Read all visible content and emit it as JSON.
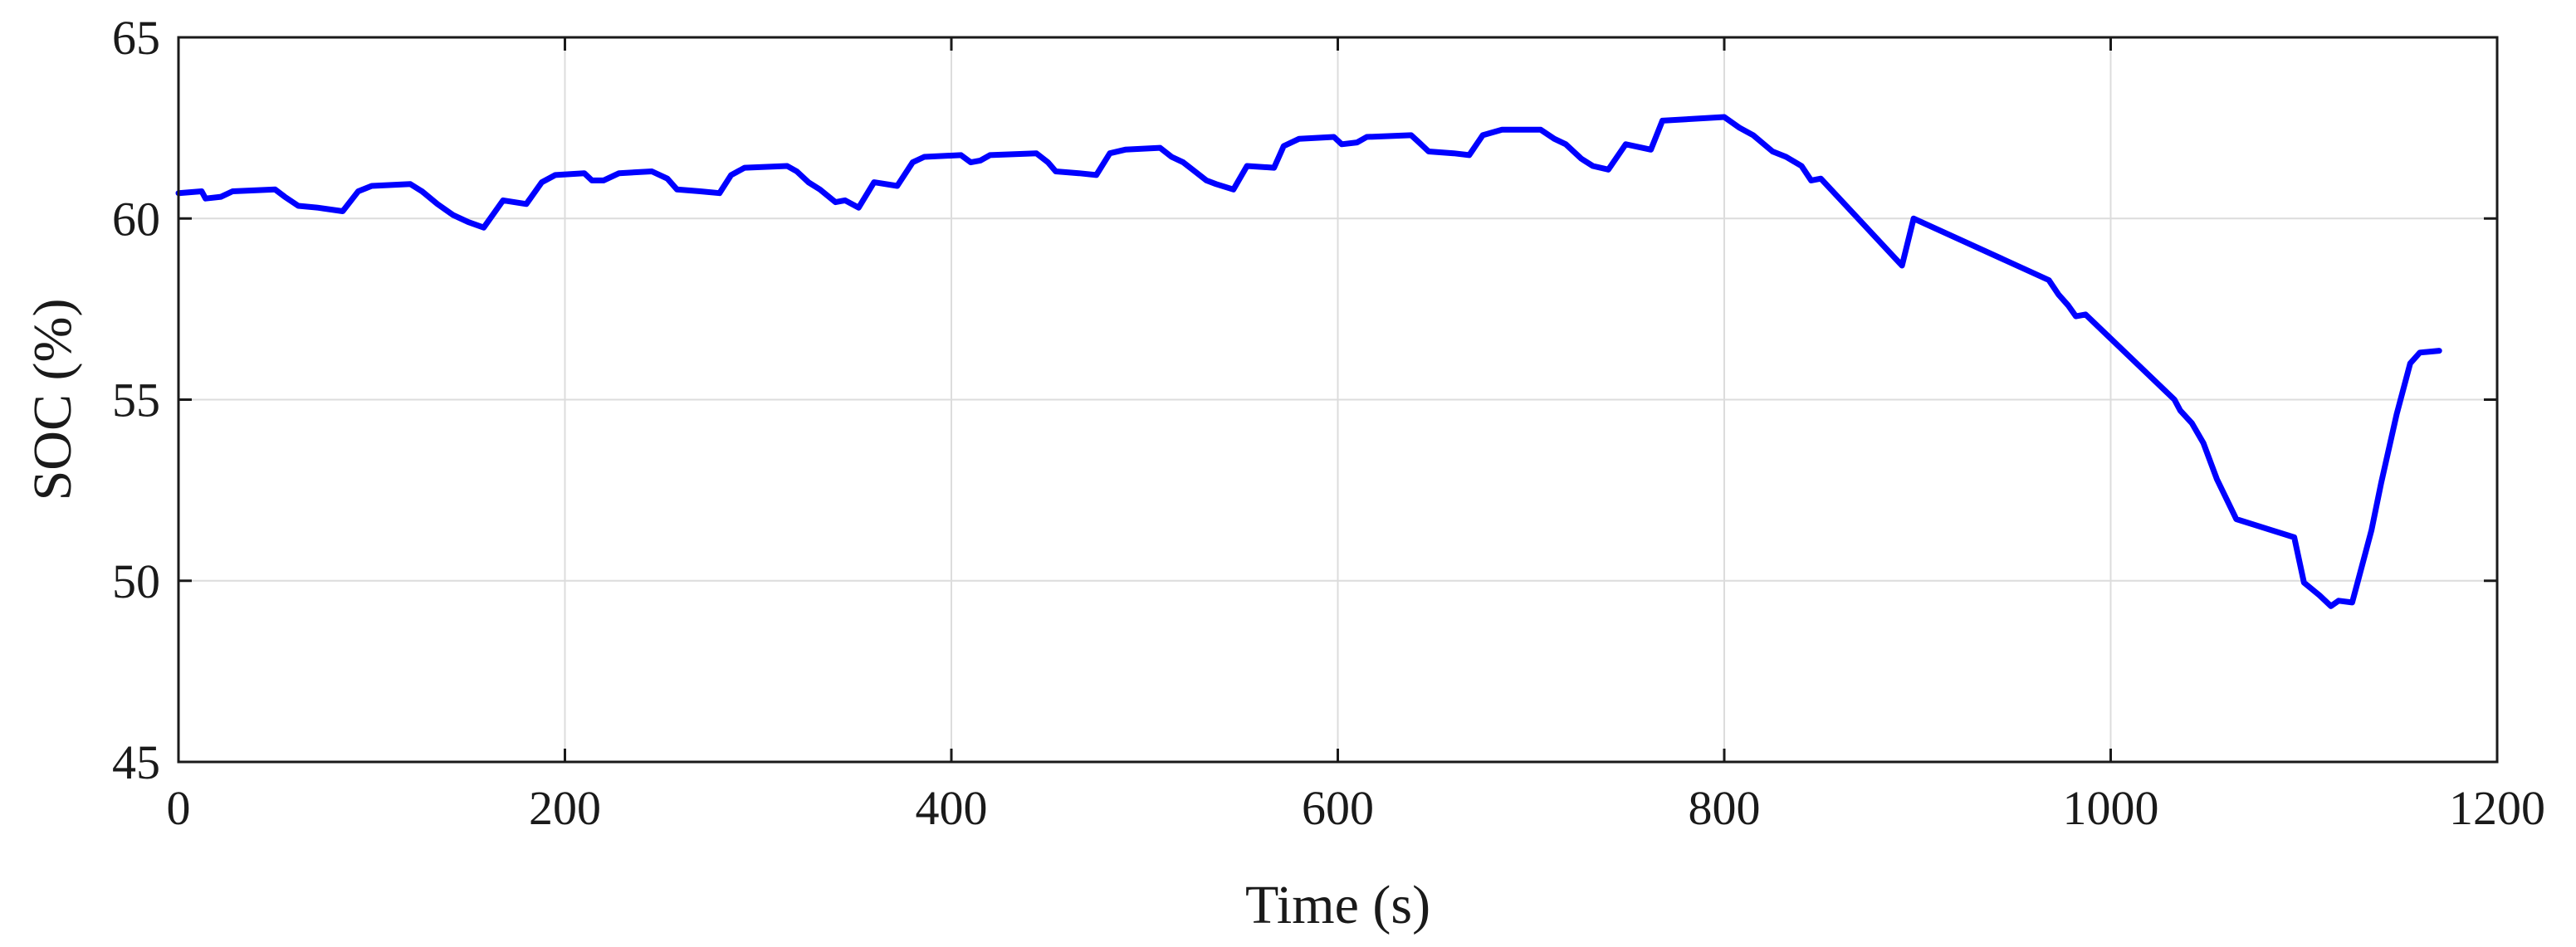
{
  "chart_data": {
    "type": "line",
    "title": "",
    "xlabel": "Time (s)",
    "ylabel": "SOC (%)",
    "xlim": [
      0,
      1200
    ],
    "ylim": [
      45,
      65
    ],
    "xticks": [
      0,
      200,
      400,
      600,
      800,
      1000,
      1200
    ],
    "yticks": [
      45,
      50,
      55,
      60,
      65
    ],
    "grid": true,
    "series": [
      {
        "color": "#0000ff",
        "points": [
          [
            0,
            60.7
          ],
          [
            12,
            60.75
          ],
          [
            14,
            60.55
          ],
          [
            22,
            60.6
          ],
          [
            28,
            60.75
          ],
          [
            50,
            60.8
          ],
          [
            55,
            60.6
          ],
          [
            62,
            60.35
          ],
          [
            72,
            60.3
          ],
          [
            85,
            60.2
          ],
          [
            93,
            60.75
          ],
          [
            100,
            60.9
          ],
          [
            120,
            60.95
          ],
          [
            126,
            60.75
          ],
          [
            134,
            60.4
          ],
          [
            142,
            60.1
          ],
          [
            150,
            59.9
          ],
          [
            158,
            59.75
          ],
          [
            168,
            60.5
          ],
          [
            180,
            60.4
          ],
          [
            188,
            61.0
          ],
          [
            195,
            61.2
          ],
          [
            210,
            61.25
          ],
          [
            214,
            61.05
          ],
          [
            220,
            61.05
          ],
          [
            228,
            61.25
          ],
          [
            245,
            61.3
          ],
          [
            253,
            61.1
          ],
          [
            258,
            60.8
          ],
          [
            270,
            60.75
          ],
          [
            280,
            60.7
          ],
          [
            286,
            61.2
          ],
          [
            293,
            61.4
          ],
          [
            315,
            61.45
          ],
          [
            320,
            61.3
          ],
          [
            326,
            61.0
          ],
          [
            332,
            60.8
          ],
          [
            340,
            60.45
          ],
          [
            345,
            60.5
          ],
          [
            352,
            60.3
          ],
          [
            360,
            61.0
          ],
          [
            372,
            60.9
          ],
          [
            380,
            61.55
          ],
          [
            386,
            61.7
          ],
          [
            405,
            61.75
          ],
          [
            410,
            61.55
          ],
          [
            415,
            61.6
          ],
          [
            420,
            61.75
          ],
          [
            444,
            61.8
          ],
          [
            450,
            61.55
          ],
          [
            454,
            61.3
          ],
          [
            466,
            61.25
          ],
          [
            475,
            61.2
          ],
          [
            482,
            61.8
          ],
          [
            490,
            61.9
          ],
          [
            508,
            61.95
          ],
          [
            514,
            61.7
          ],
          [
            520,
            61.55
          ],
          [
            526,
            61.3
          ],
          [
            532,
            61.05
          ],
          [
            537,
            60.95
          ],
          [
            546,
            60.8
          ],
          [
            553,
            61.45
          ],
          [
            567,
            61.4
          ],
          [
            572,
            62.0
          ],
          [
            580,
            62.2
          ],
          [
            598,
            62.25
          ],
          [
            602,
            62.05
          ],
          [
            610,
            62.1
          ],
          [
            615,
            62.25
          ],
          [
            638,
            62.3
          ],
          [
            642,
            62.1
          ],
          [
            647,
            61.85
          ],
          [
            660,
            61.8
          ],
          [
            668,
            61.75
          ],
          [
            675,
            62.3
          ],
          [
            685,
            62.45
          ],
          [
            705,
            62.45
          ],
          [
            712,
            62.2
          ],
          [
            718,
            62.05
          ],
          [
            726,
            61.65
          ],
          [
            732,
            61.45
          ],
          [
            740,
            61.35
          ],
          [
            749,
            62.05
          ],
          [
            762,
            61.9
          ],
          [
            768,
            62.7
          ],
          [
            800,
            62.8
          ],
          [
            808,
            62.5
          ],
          [
            815,
            62.3
          ],
          [
            825,
            61.85
          ],
          [
            832,
            61.7
          ],
          [
            840,
            61.45
          ],
          [
            845,
            61.05
          ],
          [
            850,
            61.1
          ],
          [
            892,
            58.7
          ],
          [
            898,
            60.0
          ],
          [
            968,
            58.3
          ],
          [
            973,
            57.9
          ],
          [
            978,
            57.6
          ],
          [
            982,
            57.3
          ],
          [
            987,
            57.35
          ],
          [
            1033,
            55.0
          ],
          [
            1036,
            54.7
          ],
          [
            1042,
            54.35
          ],
          [
            1048,
            53.8
          ],
          [
            1055,
            52.8
          ],
          [
            1065,
            51.7
          ],
          [
            1095,
            51.2
          ],
          [
            1100,
            49.95
          ],
          [
            1108,
            49.6
          ],
          [
            1114,
            49.3
          ],
          [
            1118,
            49.45
          ],
          [
            1125,
            49.4
          ],
          [
            1128,
            50.0
          ],
          [
            1135,
            51.4
          ],
          [
            1140,
            52.7
          ],
          [
            1148,
            54.6
          ],
          [
            1155,
            56.0
          ],
          [
            1160,
            56.3
          ],
          [
            1170,
            56.35
          ]
        ]
      }
    ]
  }
}
